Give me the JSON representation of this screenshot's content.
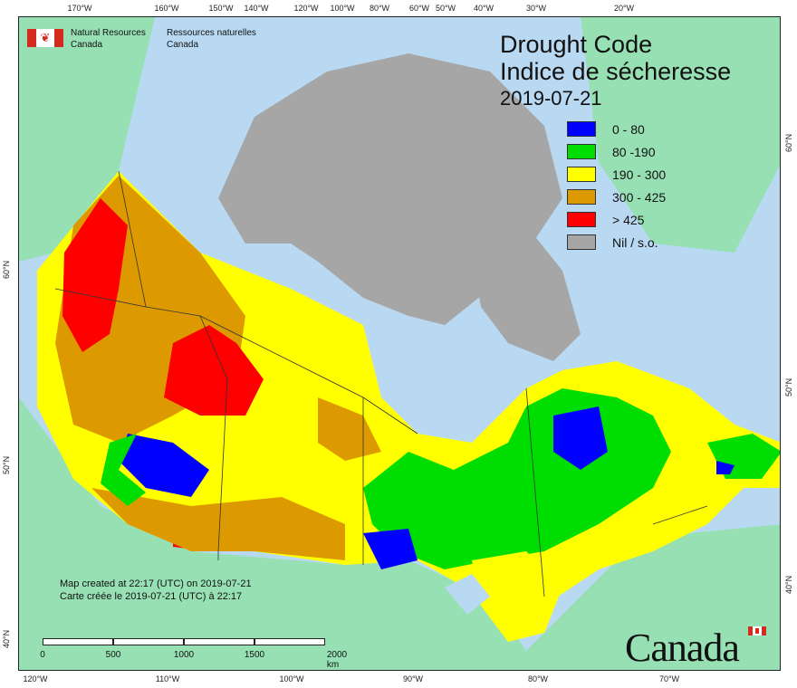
{
  "map": {
    "title_en": "Drought Code",
    "title_fr": "Indice de sécheresse",
    "date": "2019-07-21",
    "agency_en_1": "Natural Resources",
    "agency_en_2": "Canada",
    "agency_fr_1": "Ressources naturelles",
    "agency_fr_2": "Canada",
    "credit_en": "Map created at 22:17 (UTC) on 2019-07-21",
    "credit_fr": "Carte créée le 2019-07-21 (UTC) à 22:17",
    "wordmark": "Canada",
    "colors": {
      "ocean": "#b9d9f2",
      "foreign_land": "#97e0b4",
      "nil": "#a6a6a6",
      "border": "#333333"
    }
  },
  "legend": [
    {
      "label": "0 - 80",
      "color": "#0000ff"
    },
    {
      "label": "80 -190",
      "color": "#00dd00"
    },
    {
      "label": "190 - 300",
      "color": "#ffff00"
    },
    {
      "label": "300 - 425",
      "color": "#dd9900"
    },
    {
      "label": "> 425",
      "color": "#ff0000"
    },
    {
      "label": "Nil / s.o.",
      "color": "#a6a6a6"
    }
  ],
  "graticule": {
    "top": [
      "170°W",
      "160°W",
      "150°W",
      "140°W",
      "120°W",
      "100°W",
      "80°W",
      "60°W",
      "50°W",
      "40°W",
      "30°W",
      "20°W"
    ],
    "bottom": [
      "120°W",
      "110°W",
      "100°W",
      "90°W",
      "80°W",
      "70°W"
    ],
    "left": [
      "60°N",
      "50°N",
      "40°N"
    ],
    "right": [
      "60°N",
      "50°N",
      "40°N"
    ]
  },
  "scale": {
    "labels": [
      "0",
      "500",
      "1000",
      "1500",
      "2000 km"
    ]
  }
}
